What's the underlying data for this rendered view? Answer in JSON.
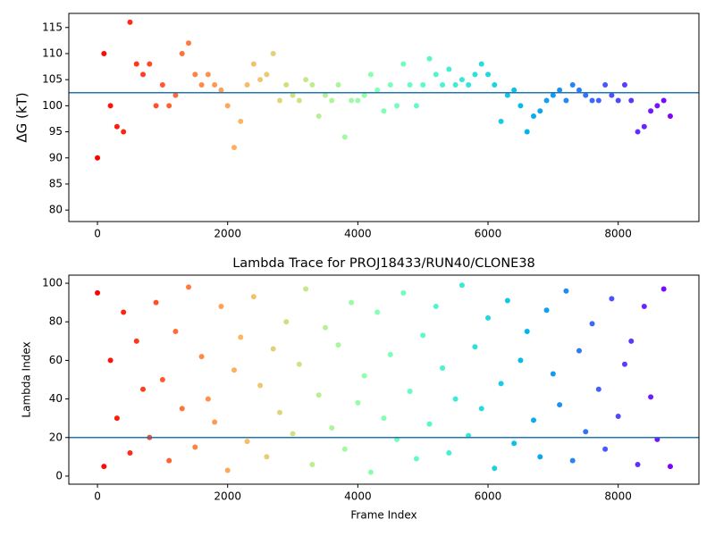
{
  "chart_data": [
    {
      "type": "scatter",
      "ylabel": "ΔG (kT)",
      "colormap": "rainbow_r",
      "hline": 102.5,
      "hline_color": "#1f77b4",
      "x": [
        0,
        100,
        200,
        300,
        400,
        500,
        600,
        700,
        800,
        900,
        1000,
        1100,
        1200,
        1300,
        1400,
        1500,
        1600,
        1700,
        1800,
        1900,
        2000,
        2100,
        2200,
        2300,
        2400,
        2500,
        2600,
        2700,
        2800,
        2900,
        3000,
        3100,
        3200,
        3300,
        3400,
        3500,
        3600,
        3700,
        3800,
        3900,
        4000,
        4100,
        4200,
        4300,
        4400,
        4500,
        4600,
        4700,
        4800,
        4900,
        5000,
        5100,
        5200,
        5300,
        5400,
        5500,
        5600,
        5700,
        5800,
        5900,
        6000,
        6100,
        6200,
        6300,
        6400,
        6500,
        6600,
        6700,
        6800,
        6900,
        7000,
        7100,
        7200,
        7300,
        7400,
        7500,
        7600,
        7700,
        7800,
        7900,
        8000,
        8100,
        8200,
        8300,
        8400,
        8500,
        8600,
        8700,
        8800
      ],
      "values": [
        90,
        110,
        100,
        96,
        95,
        116,
        108,
        106,
        108,
        100,
        104,
        100,
        102,
        110,
        112,
        106,
        104,
        106,
        104,
        103,
        100,
        92,
        97,
        104,
        108,
        105,
        106,
        110,
        101,
        104,
        102,
        101,
        105,
        104,
        98,
        102,
        101,
        104,
        94,
        101,
        101,
        102,
        106,
        103,
        99,
        104,
        100,
        108,
        104,
        100,
        104,
        109,
        106,
        104,
        107,
        104,
        105,
        104,
        106,
        108,
        106,
        104,
        97,
        102,
        103,
        100,
        95,
        98,
        99,
        101,
        102,
        103,
        101,
        104,
        103,
        102,
        101,
        101,
        104,
        102,
        101,
        104,
        101,
        95,
        96,
        99,
        100,
        101,
        98
      ],
      "xlim": [
        -440,
        9240
      ],
      "xticks": [
        0,
        2000,
        4000,
        6000,
        8000
      ],
      "ylim": [
        77.8,
        117.7
      ],
      "yticks": [
        80,
        85,
        90,
        95,
        100,
        105,
        110,
        115
      ]
    },
    {
      "type": "scatter",
      "title": "Lambda Trace for PROJ18433/RUN40/CLONE38",
      "xlabel": "Frame Index",
      "ylabel": "Lambda Index",
      "colormap": "rainbow_r",
      "hline": 20,
      "hline_color": "#1f77b4",
      "x": [
        0,
        100,
        200,
        300,
        400,
        500,
        600,
        700,
        800,
        900,
        1000,
        1100,
        1200,
        1300,
        1400,
        1500,
        1600,
        1700,
        1800,
        1900,
        2000,
        2100,
        2200,
        2300,
        2400,
        2500,
        2600,
        2700,
        2800,
        2900,
        3000,
        3100,
        3200,
        3300,
        3400,
        3500,
        3600,
        3700,
        3800,
        3900,
        4000,
        4100,
        4200,
        4300,
        4400,
        4500,
        4600,
        4700,
        4800,
        4900,
        5000,
        5100,
        5200,
        5300,
        5400,
        5500,
        5600,
        5700,
        5800,
        5900,
        6000,
        6100,
        6200,
        6300,
        6400,
        6500,
        6600,
        6700,
        6800,
        6900,
        7000,
        7100,
        7200,
        7300,
        7400,
        7500,
        7600,
        7700,
        7800,
        7900,
        8000,
        8100,
        8200,
        8300,
        8400,
        8500,
        8600,
        8700,
        8800
      ],
      "values": [
        95,
        5,
        60,
        30,
        85,
        12,
        70,
        45,
        20,
        90,
        50,
        8,
        75,
        35,
        98,
        15,
        62,
        40,
        28,
        88,
        3,
        55,
        72,
        18,
        93,
        47,
        10,
        66,
        33,
        80,
        22,
        58,
        97,
        6,
        42,
        77,
        25,
        68,
        14,
        90,
        38,
        52,
        2,
        85,
        30,
        63,
        19,
        95,
        44,
        9,
        73,
        27,
        88,
        56,
        12,
        40,
        99,
        21,
        67,
        35,
        82,
        4,
        48,
        91,
        17,
        60,
        75,
        29,
        10,
        86,
        53,
        37,
        96,
        8,
        65,
        23,
        79,
        45,
        14,
        92,
        31,
        58,
        70,
        6,
        88,
        41,
        19,
        97,
        5
      ],
      "xlim": [
        -440,
        9240
      ],
      "xticks": [
        0,
        2000,
        4000,
        6000,
        8000
      ],
      "ylim": [
        -4.2,
        104.2
      ],
      "yticks": [
        0,
        20,
        40,
        60,
        80,
        100
      ]
    }
  ]
}
